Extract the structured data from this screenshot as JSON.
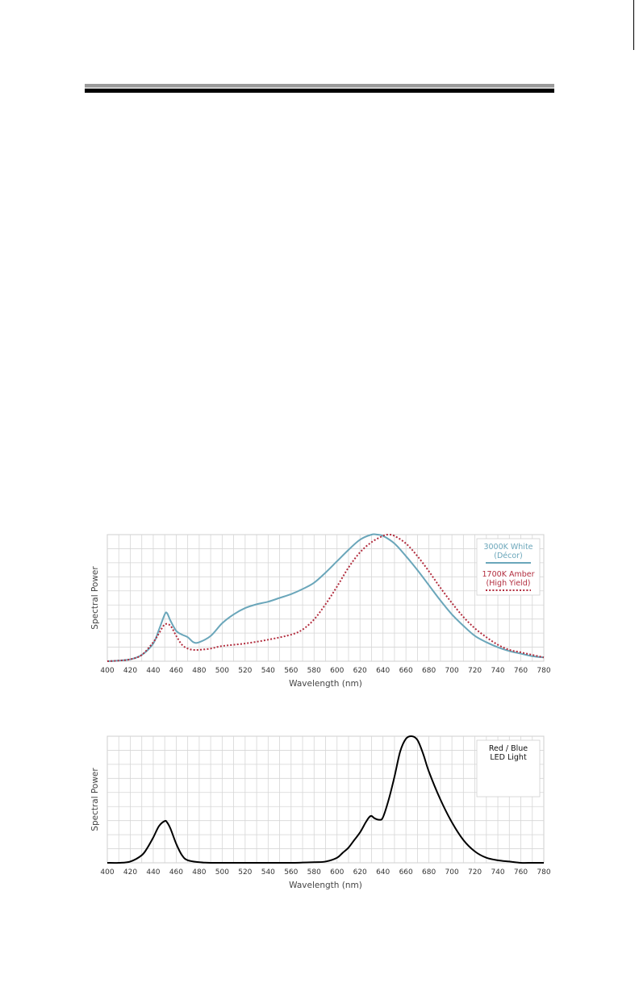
{
  "page": {
    "colors": {
      "rule_dark": "#000000",
      "rule_light": "#9a9a9a",
      "grid": "#d6d6d6"
    }
  },
  "chart_data": [
    {
      "type": "line",
      "title": "",
      "xlabel": "Wavelength (nm)",
      "ylabel": "Spectral Power",
      "xlim": [
        400,
        780
      ],
      "ylim": [
        0,
        1
      ],
      "xticks": [
        400,
        420,
        440,
        460,
        480,
        500,
        520,
        540,
        560,
        580,
        600,
        620,
        640,
        660,
        680,
        700,
        720,
        740,
        760,
        780
      ],
      "grid": true,
      "legend_position": "top-right",
      "legend": [
        {
          "label": "3000K White (Décor)",
          "label_lines": [
            "3000K White",
            "(Décor)"
          ],
          "color": "#6aa6ba",
          "style": "solid"
        },
        {
          "label": "1700K Amber (High Yield)",
          "label_lines": [
            "1700K Amber",
            "(High Yield)"
          ],
          "color": "#b22d3e",
          "style": "dotted"
        }
      ],
      "series": [
        {
          "name": "3000K White (Décor)",
          "color": "#6aa6ba",
          "style": "solid",
          "x": [
            400,
            410,
            420,
            430,
            440,
            445,
            450,
            452,
            455,
            460,
            465,
            470,
            475,
            480,
            490,
            500,
            510,
            520,
            530,
            540,
            550,
            560,
            570,
            580,
            590,
            600,
            610,
            620,
            630,
            635,
            640,
            650,
            660,
            670,
            680,
            690,
            700,
            710,
            720,
            730,
            740,
            750,
            760,
            770,
            780
          ],
          "y": [
            0.0,
            0.005,
            0.015,
            0.05,
            0.14,
            0.25,
            0.37,
            0.38,
            0.32,
            0.24,
            0.21,
            0.19,
            0.15,
            0.15,
            0.2,
            0.3,
            0.37,
            0.42,
            0.45,
            0.47,
            0.5,
            0.53,
            0.57,
            0.62,
            0.7,
            0.79,
            0.88,
            0.96,
            1.0,
            1.0,
            0.99,
            0.93,
            0.83,
            0.72,
            0.6,
            0.48,
            0.37,
            0.28,
            0.2,
            0.15,
            0.11,
            0.08,
            0.06,
            0.04,
            0.03
          ]
        },
        {
          "name": "1700K Amber (High Yield)",
          "color": "#b22d3e",
          "style": "dotted",
          "x": [
            400,
            410,
            420,
            430,
            440,
            445,
            450,
            455,
            460,
            465,
            470,
            475,
            480,
            490,
            500,
            520,
            540,
            560,
            570,
            580,
            590,
            600,
            610,
            620,
            630,
            640,
            645,
            650,
            660,
            670,
            680,
            690,
            700,
            710,
            720,
            730,
            740,
            750,
            760,
            770,
            780
          ],
          "y": [
            0.0,
            0.005,
            0.015,
            0.05,
            0.15,
            0.22,
            0.29,
            0.28,
            0.2,
            0.13,
            0.1,
            0.09,
            0.09,
            0.1,
            0.12,
            0.14,
            0.17,
            0.21,
            0.25,
            0.33,
            0.45,
            0.59,
            0.74,
            0.86,
            0.94,
            0.99,
            1.0,
            0.99,
            0.93,
            0.83,
            0.71,
            0.58,
            0.46,
            0.35,
            0.26,
            0.19,
            0.13,
            0.09,
            0.07,
            0.05,
            0.03
          ]
        }
      ]
    },
    {
      "type": "line",
      "title": "",
      "xlabel": "Wavelength (nm)",
      "ylabel": "Spectral Power",
      "xlim": [
        400,
        780
      ],
      "ylim": [
        0,
        1
      ],
      "xticks": [
        400,
        420,
        440,
        460,
        480,
        500,
        520,
        540,
        560,
        580,
        600,
        620,
        640,
        660,
        680,
        700,
        720,
        740,
        760,
        780
      ],
      "grid": true,
      "legend_position": "top-right",
      "legend": [
        {
          "label": "Red / Blue LED Light",
          "label_lines": [
            "Red / Blue",
            "LED Light"
          ],
          "color": "#000000",
          "style": "none"
        }
      ],
      "series": [
        {
          "name": "Red / Blue LED Light",
          "color": "#000000",
          "style": "solid",
          "x": [
            400,
            410,
            420,
            430,
            435,
            440,
            445,
            450,
            452,
            455,
            460,
            465,
            470,
            480,
            490,
            500,
            520,
            540,
            560,
            580,
            590,
            600,
            605,
            610,
            615,
            620,
            625,
            628,
            630,
            633,
            637,
            640,
            645,
            650,
            655,
            660,
            665,
            670,
            675,
            680,
            690,
            700,
            710,
            720,
            730,
            740,
            750,
            760,
            770,
            780
          ],
          "y": [
            0.0,
            0.0,
            0.01,
            0.06,
            0.12,
            0.2,
            0.29,
            0.33,
            0.32,
            0.27,
            0.15,
            0.06,
            0.02,
            0.005,
            0.0,
            0.0,
            0.0,
            0.0,
            0.0,
            0.005,
            0.01,
            0.04,
            0.08,
            0.12,
            0.18,
            0.24,
            0.32,
            0.36,
            0.37,
            0.35,
            0.34,
            0.36,
            0.5,
            0.68,
            0.88,
            0.98,
            1.0,
            0.97,
            0.86,
            0.72,
            0.5,
            0.32,
            0.18,
            0.09,
            0.04,
            0.02,
            0.01,
            0.0,
            0.0,
            0.0
          ]
        }
      ]
    }
  ]
}
